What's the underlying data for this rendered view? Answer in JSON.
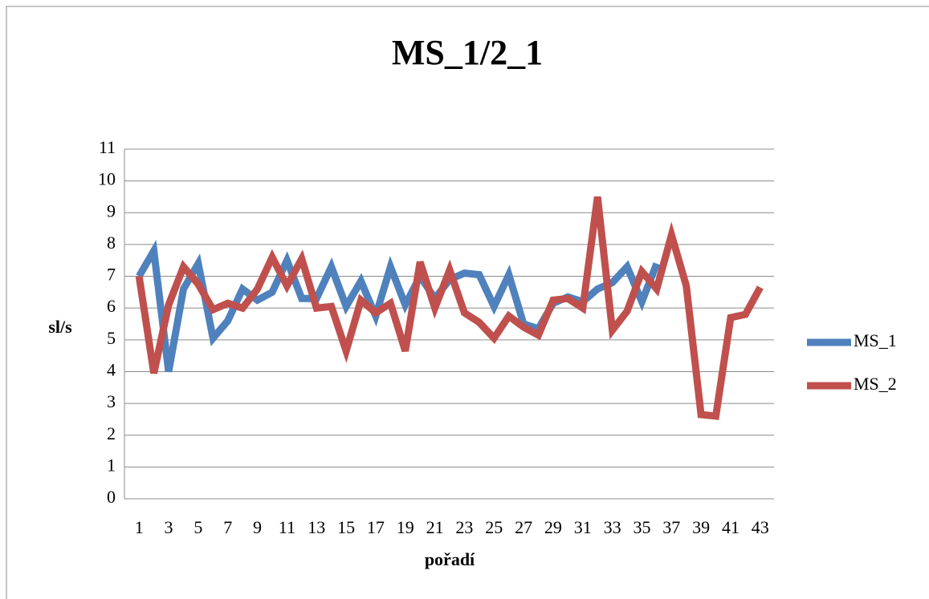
{
  "chart_data": {
    "type": "line",
    "title": "MS_1/2_1",
    "y_label": "sl/s",
    "x_label": "pořadí",
    "categories": [
      "1",
      null,
      "3",
      null,
      "5",
      null,
      "7",
      null,
      "9",
      null,
      "11",
      null,
      "13",
      null,
      "15",
      null,
      "17",
      null,
      "19",
      null,
      "21",
      null,
      "23",
      null,
      "25",
      null,
      "27",
      null,
      "29",
      null,
      "31",
      null,
      "33",
      null,
      "35",
      null,
      "37",
      null,
      "39",
      null,
      "41",
      null,
      "43"
    ],
    "series": [
      {
        "name": "MS_1",
        "color": "#4f81bd",
        "values": [
          7.0,
          7.8,
          4.0,
          6.6,
          7.4,
          5.05,
          5.6,
          6.6,
          6.25,
          6.5,
          7.5,
          6.3,
          6.3,
          7.3,
          6.05,
          6.85,
          5.75,
          7.3,
          6.1,
          7.0,
          6.3,
          6.9,
          7.1,
          7.05,
          6.05,
          7.05,
          5.5,
          5.35,
          6.15,
          6.35,
          6.2,
          6.6,
          6.8,
          7.3,
          6.2,
          7.4,
          null,
          null,
          null,
          null,
          null,
          null,
          null
        ]
      },
      {
        "name": "MS_2",
        "color": "#c0504d",
        "values": [
          7.0,
          3.95,
          6.1,
          7.3,
          6.75,
          5.95,
          6.15,
          6.0,
          6.6,
          7.6,
          6.7,
          7.55,
          6.0,
          6.05,
          4.65,
          6.25,
          5.85,
          6.15,
          4.65,
          7.45,
          6.0,
          7.2,
          5.85,
          5.55,
          5.05,
          5.75,
          5.4,
          5.15,
          6.25,
          6.3,
          6.0,
          9.5,
          5.3,
          5.9,
          7.15,
          6.6,
          8.3,
          6.7,
          2.65,
          2.6,
          5.7,
          5.8,
          6.65
        ]
      }
    ],
    "ylim": [
      0,
      11
    ],
    "yticks": [
      0,
      1,
      2,
      3,
      4,
      5,
      6,
      7,
      8,
      9,
      10,
      11
    ],
    "grid": true,
    "legend": "right"
  }
}
